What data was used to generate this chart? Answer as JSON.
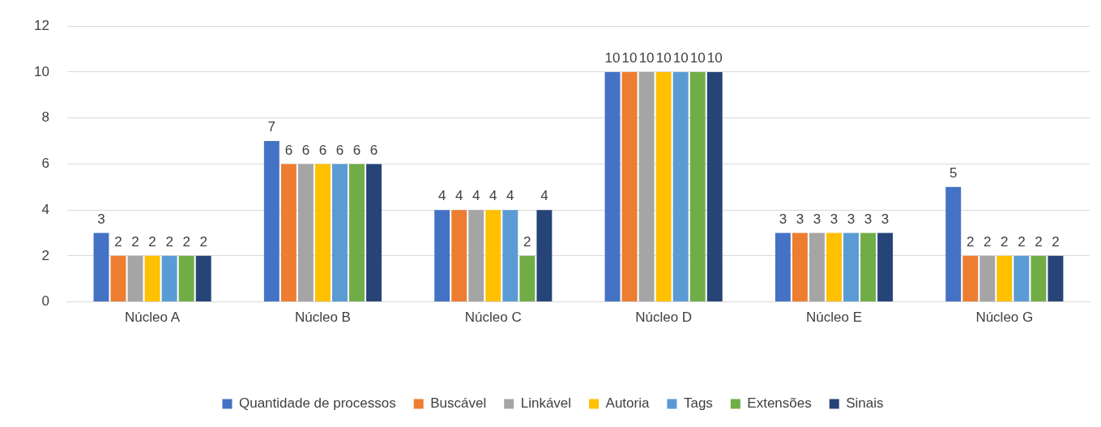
{
  "chart_data": {
    "type": "bar",
    "categories": [
      "Núcleo A",
      "Núcleo B",
      "Núcleo C",
      "Núcleo D",
      "Núcleo E",
      "Núcleo G"
    ],
    "series": [
      {
        "name": "Quantidade de processos",
        "color": "#4472c4",
        "values": [
          3,
          7,
          4,
          10,
          3,
          5
        ]
      },
      {
        "name": "Buscável",
        "color": "#ed7d31",
        "values": [
          2,
          6,
          4,
          10,
          3,
          2
        ]
      },
      {
        "name": "Linkável",
        "color": "#a5a5a5",
        "values": [
          2,
          6,
          4,
          10,
          3,
          2
        ]
      },
      {
        "name": "Autoria",
        "color": "#ffc000",
        "values": [
          2,
          6,
          4,
          10,
          3,
          2
        ]
      },
      {
        "name": "Tags",
        "color": "#5b9bd5",
        "values": [
          2,
          6,
          4,
          10,
          3,
          2
        ]
      },
      {
        "name": "Extensões",
        "color": "#70ad47",
        "values": [
          2,
          6,
          2,
          10,
          3,
          2
        ]
      },
      {
        "name": "Sinais",
        "color": "#264478",
        "values": [
          2,
          6,
          4,
          10,
          3,
          2
        ]
      }
    ],
    "ylim": [
      0,
      12
    ],
    "yticks": [
      0,
      2,
      4,
      6,
      8,
      10,
      12
    ],
    "grid": "y",
    "legend": "bottom",
    "data_labels": true
  }
}
